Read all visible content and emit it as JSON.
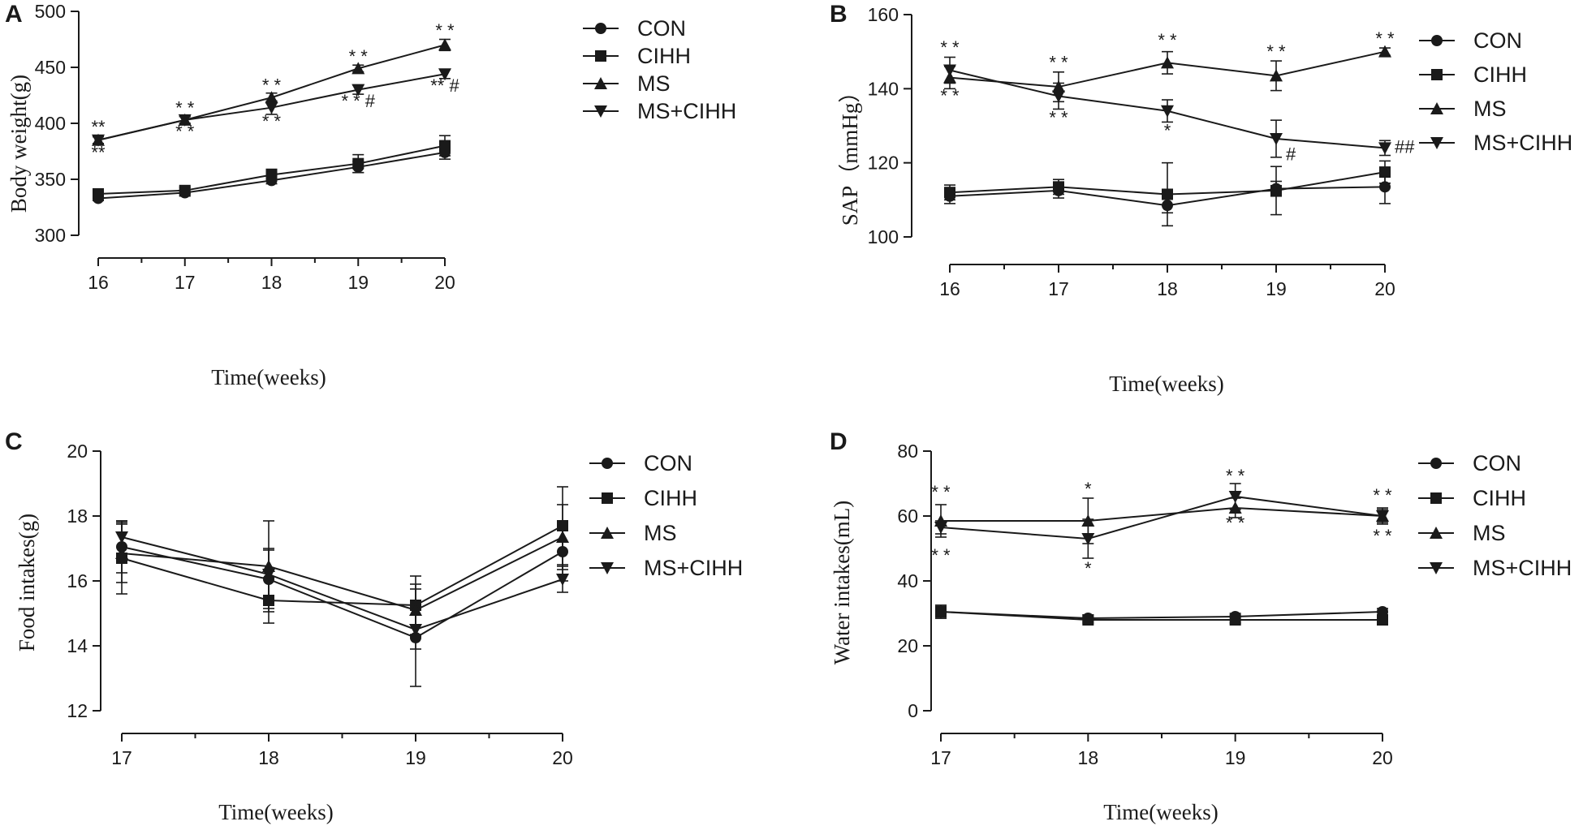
{
  "chart_data": [
    {
      "panel": "A",
      "type": "line",
      "title": "",
      "xlabel": "Time(weeks)",
      "ylabel": "Body weight(g)",
      "x": [
        16,
        17,
        18,
        19,
        20
      ],
      "xlim": [
        16,
        20
      ],
      "ylim": [
        300,
        500
      ],
      "yticks": [
        300,
        350,
        400,
        450,
        500
      ],
      "legend_position": "right",
      "series": [
        {
          "name": "CON",
          "marker": "circle",
          "values": [
            333,
            338,
            349,
            361,
            374
          ],
          "err": [
            2,
            3,
            3,
            5,
            6
          ]
        },
        {
          "name": "CIHH",
          "marker": "square",
          "values": [
            337,
            340,
            354,
            364,
            380
          ],
          "err": [
            3,
            3,
            5,
            8,
            9
          ]
        },
        {
          "name": "MS",
          "marker": "triangle-up",
          "values": [
            385,
            403,
            423,
            449,
            470
          ],
          "err": [
            3,
            3,
            4,
            3,
            5
          ]
        },
        {
          "name": "MS+CIHH",
          "marker": "triangle-down",
          "values": [
            385,
            403,
            414,
            430,
            444
          ],
          "err": [
            3,
            3,
            6,
            4,
            4
          ]
        }
      ],
      "annotations": [
        {
          "x": 16,
          "y": 390,
          "text": "**",
          "pos": "above"
        },
        {
          "x": 16,
          "y": 380,
          "text": "**",
          "pos": "below"
        },
        {
          "x": 17,
          "y": 407,
          "text": "* *",
          "pos": "above"
        },
        {
          "x": 17,
          "y": 399,
          "text": "* *",
          "pos": "below"
        },
        {
          "x": 18,
          "y": 427,
          "text": "* *",
          "pos": "above"
        },
        {
          "x": 18,
          "y": 408,
          "text": "* *",
          "pos": "below"
        },
        {
          "x": 19,
          "y": 453,
          "text": "* *",
          "pos": "above"
        },
        {
          "x": 19,
          "y": 426,
          "text": "* * #",
          "pos": "below"
        },
        {
          "x": 20,
          "y": 476,
          "text": "* *",
          "pos": "above"
        },
        {
          "x": 20,
          "y": 440,
          "text": "** #",
          "pos": "below"
        }
      ]
    },
    {
      "panel": "B",
      "type": "line",
      "title": "",
      "xlabel": "Time(weeks)",
      "ylabel": "SAP（mmHg）",
      "x": [
        16,
        17,
        18,
        19,
        20
      ],
      "xlim": [
        16,
        20
      ],
      "ylim": [
        100,
        160
      ],
      "yticks": [
        100,
        120,
        140,
        160
      ],
      "legend_position": "right",
      "series": [
        {
          "name": "CON",
          "marker": "circle",
          "values": [
            111,
            112.5,
            108.5,
            113,
            113.5
          ],
          "err": [
            2,
            2,
            2,
            2,
            4.5
          ]
        },
        {
          "name": "CIHH",
          "marker": "square",
          "values": [
            112,
            113.5,
            111.5,
            112.5,
            117.5
          ],
          "err": [
            2,
            2,
            8.5,
            6.5,
            3
          ]
        },
        {
          "name": "MS",
          "marker": "triangle-up",
          "values": [
            143,
            140.5,
            147,
            143.5,
            150
          ],
          "err": [
            3,
            4,
            3,
            4,
            1
          ]
        },
        {
          "name": "MS+CIHH",
          "marker": "triangle-down",
          "values": [
            145,
            138,
            134,
            126.5,
            124
          ],
          "err": [
            3.5,
            3.5,
            3,
            5,
            2
          ]
        }
      ],
      "annotations": [
        {
          "x": 16,
          "y": 149,
          "text": "* *",
          "pos": "above"
        },
        {
          "x": 16,
          "y": 140,
          "text": "* *",
          "pos": "below"
        },
        {
          "x": 17,
          "y": 145,
          "text": "* *",
          "pos": "above"
        },
        {
          "x": 17,
          "y": 134,
          "text": "* *",
          "pos": "below"
        },
        {
          "x": 18,
          "y": 151,
          "text": "* *",
          "pos": "above"
        },
        {
          "x": 18,
          "y": 130.5,
          "text": "*",
          "pos": "below"
        },
        {
          "x": 19,
          "y": 148,
          "text": "* *",
          "pos": "above"
        },
        {
          "x": 19,
          "y": 122,
          "text": "#",
          "pos": "right"
        },
        {
          "x": 20,
          "y": 151.5,
          "text": "* *",
          "pos": "above"
        },
        {
          "x": 20,
          "y": 124,
          "text": "##",
          "pos": "right"
        }
      ]
    },
    {
      "panel": "C",
      "type": "line",
      "title": "",
      "xlabel": "Time(weeks)",
      "ylabel": "Food intakes(g)",
      "x": [
        17,
        18,
        19,
        20
      ],
      "xlim": [
        17,
        20
      ],
      "ylim": [
        12,
        20
      ],
      "yticks": [
        12,
        14,
        16,
        18,
        20
      ],
      "legend_position": "right",
      "series": [
        {
          "name": "CON",
          "marker": "circle",
          "values": [
            17.05,
            16.05,
            14.25,
            16.9
          ],
          "err": [
            0.8,
            0.9,
            1.5,
            0.9
          ]
        },
        {
          "name": "CIHH",
          "marker": "square",
          "values": [
            16.7,
            15.4,
            15.25,
            17.7
          ],
          "err": [
            1.1,
            0.7,
            0.9,
            1.2
          ]
        },
        {
          "name": "MS",
          "marker": "triangle-up",
          "values": [
            16.85,
            16.45,
            15.1,
            17.35
          ],
          "err": [
            0.9,
            1.4,
            0.8,
            1.0
          ]
        },
        {
          "name": "MS+CIHH",
          "marker": "triangle-down",
          "values": [
            17.35,
            16.2,
            14.5,
            16.05
          ],
          "err": [
            0.5,
            0.8,
            0.6,
            0.4
          ]
        }
      ],
      "annotations": []
    },
    {
      "panel": "D",
      "type": "line",
      "title": "",
      "xlabel": "Time(weeks)",
      "ylabel": "Water intakes(mL)",
      "x": [
        17,
        18,
        19,
        20
      ],
      "xlim": [
        17,
        20
      ],
      "ylim": [
        0,
        80
      ],
      "yticks": [
        0,
        20,
        40,
        60,
        80
      ],
      "legend_position": "right",
      "series": [
        {
          "name": "CON",
          "marker": "circle",
          "values": [
            30.5,
            28.5,
            29,
            30.5
          ],
          "err": [
            2,
            1,
            1,
            1
          ]
        },
        {
          "name": "CIHH",
          "marker": "square",
          "values": [
            30.5,
            28,
            28,
            28
          ],
          "err": [
            2,
            1,
            1,
            1
          ]
        },
        {
          "name": "MS",
          "marker": "triangle-up",
          "values": [
            58.5,
            58.5,
            62.5,
            60
          ],
          "err": [
            5,
            7,
            3,
            2.5
          ]
        },
        {
          "name": "MS+CIHH",
          "marker": "triangle-down",
          "values": [
            56.5,
            53,
            66,
            60
          ],
          "err": [
            2,
            6,
            4,
            2
          ]
        }
      ],
      "annotations": [
        {
          "x": 17,
          "y": 65,
          "text": "* *",
          "pos": "above"
        },
        {
          "x": 17,
          "y": 50,
          "text": "* *",
          "pos": "below"
        },
        {
          "x": 18,
          "y": 66,
          "text": "*",
          "pos": "above"
        },
        {
          "x": 18,
          "y": 46,
          "text": "*",
          "pos": "below"
        },
        {
          "x": 19,
          "y": 70,
          "text": "* *",
          "pos": "above"
        },
        {
          "x": 19,
          "y": 60,
          "text": "* *",
          "pos": "below"
        },
        {
          "x": 20,
          "y": 64,
          "text": "* *",
          "pos": "above"
        },
        {
          "x": 20,
          "y": 56,
          "text": "* *",
          "pos": "below"
        }
      ]
    }
  ],
  "colors": {
    "ink": "#1a1a1a",
    "background": "#ffffff"
  }
}
